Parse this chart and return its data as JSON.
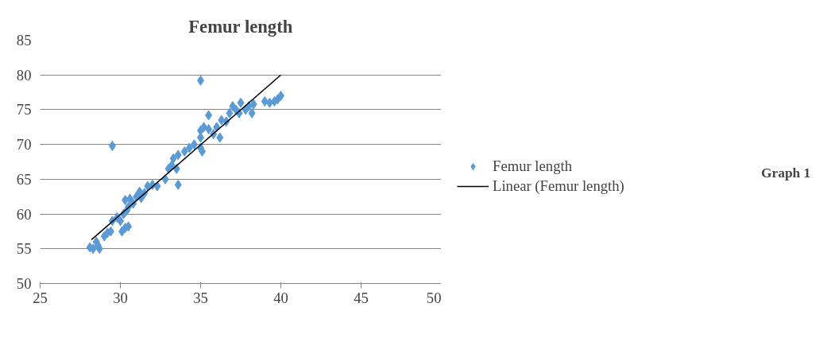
{
  "chart_data": {
    "type": "scatter",
    "title": "Femur length",
    "annotations": [
      "Graph 1"
    ],
    "xlim": [
      25,
      50
    ],
    "xticks": [
      25,
      30,
      35,
      40,
      45,
      50
    ],
    "ylim": [
      50,
      85
    ],
    "yticks": [
      50,
      55,
      60,
      65,
      70,
      75,
      80,
      85
    ],
    "grid": "y",
    "legend": "right",
    "series": [
      {
        "name": "Femur length",
        "color": "#5b9bd5",
        "marker": "diamond",
        "x": [
          28.1,
          28.3,
          28.6,
          28.7,
          28.5,
          29.0,
          29.2,
          29.4,
          29.5,
          29.5,
          29.8,
          30.0,
          30.1,
          30.3,
          30.5,
          30.2,
          30.4,
          30.5,
          30.3,
          30.6,
          30.8,
          31.0,
          31.3,
          31.5,
          31.2,
          31.7,
          32.0,
          32.3,
          32.8,
          33.0,
          33.2,
          33.5,
          33.3,
          33.6,
          33.6,
          34.0,
          34.3,
          34.6,
          35.0,
          35.1,
          35.0,
          35.0,
          35.2,
          35.5,
          35.0,
          35.5,
          35.8,
          36.0,
          36.2,
          36.3,
          36.6,
          36.8,
          37.0,
          37.2,
          37.5,
          37.4,
          37.8,
          38.0,
          38.2,
          38.3,
          39.0,
          39.3,
          39.6,
          39.8,
          40.0
        ],
        "values": [
          55.2,
          55.0,
          55.5,
          55.0,
          56.0,
          56.8,
          57.3,
          57.5,
          59.0,
          69.8,
          59.5,
          59.0,
          57.5,
          58.0,
          58.2,
          60.0,
          60.5,
          61.0,
          62.0,
          62.2,
          61.5,
          62.5,
          62.3,
          63.0,
          63.2,
          64.0,
          64.2,
          64.0,
          65.0,
          66.5,
          67.0,
          66.5,
          68.0,
          68.5,
          64.2,
          69.0,
          69.5,
          70.0,
          69.5,
          69.0,
          71.0,
          72.0,
          72.5,
          72.2,
          79.2,
          74.2,
          71.5,
          72.5,
          71.0,
          73.5,
          73.3,
          74.5,
          75.5,
          75.0,
          76.0,
          74.5,
          75.0,
          75.5,
          74.5,
          75.8,
          76.2,
          76.0,
          76.2,
          76.5,
          77.0
        ]
      },
      {
        "name": "Linear (Femur length)",
        "color": "#000000",
        "type": "line",
        "marker": "none",
        "x": [
          28.2,
          40
        ],
        "values": [
          56.3,
          80
        ]
      }
    ]
  }
}
